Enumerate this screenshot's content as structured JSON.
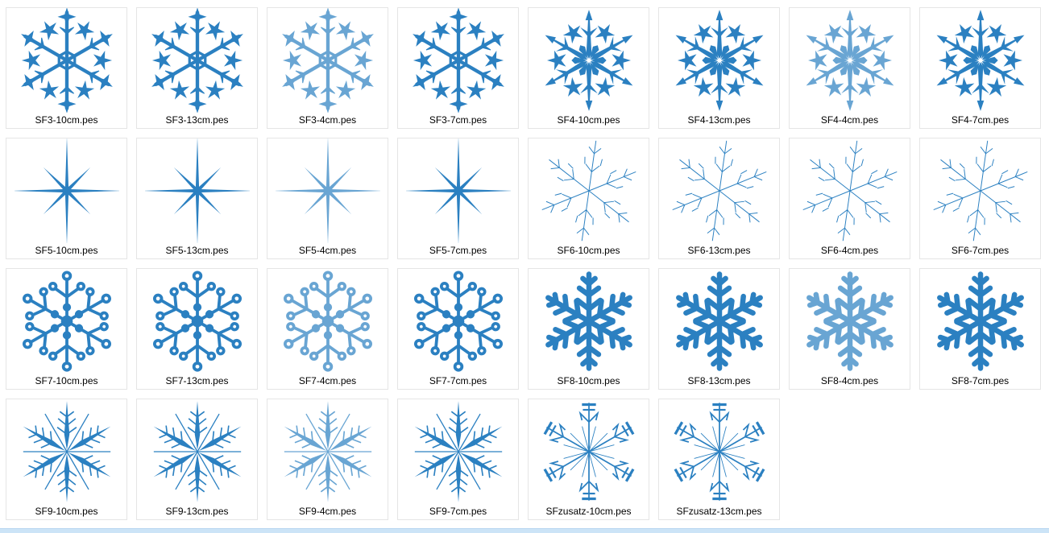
{
  "accent_color": "#2b80c1",
  "files": [
    {
      "name": "SF3-10cm.pes",
      "icon": "sf3"
    },
    {
      "name": "SF3-13cm.pes",
      "icon": "sf3"
    },
    {
      "name": "SF3-4cm.pes",
      "icon": "sf3",
      "light": true
    },
    {
      "name": "SF3-7cm.pes",
      "icon": "sf3"
    },
    {
      "name": "SF4-10cm.pes",
      "icon": "sf4"
    },
    {
      "name": "SF4-13cm.pes",
      "icon": "sf4"
    },
    {
      "name": "SF4-4cm.pes",
      "icon": "sf4",
      "light": true
    },
    {
      "name": "SF4-7cm.pes",
      "icon": "sf4"
    },
    {
      "name": "SF5-10cm.pes",
      "icon": "sf5"
    },
    {
      "name": "SF5-13cm.pes",
      "icon": "sf5"
    },
    {
      "name": "SF5-4cm.pes",
      "icon": "sf5",
      "light": true
    },
    {
      "name": "SF5-7cm.pes",
      "icon": "sf5"
    },
    {
      "name": "SF6-10cm.pes",
      "icon": "sf6"
    },
    {
      "name": "SF6-13cm.pes",
      "icon": "sf6"
    },
    {
      "name": "SF6-4cm.pes",
      "icon": "sf6"
    },
    {
      "name": "SF6-7cm.pes",
      "icon": "sf6"
    },
    {
      "name": "SF7-10cm.pes",
      "icon": "sf7"
    },
    {
      "name": "SF7-13cm.pes",
      "icon": "sf7"
    },
    {
      "name": "SF7-4cm.pes",
      "icon": "sf7",
      "light": true
    },
    {
      "name": "SF7-7cm.pes",
      "icon": "sf7"
    },
    {
      "name": "SF8-10cm.pes",
      "icon": "sf8"
    },
    {
      "name": "SF8-13cm.pes",
      "icon": "sf8"
    },
    {
      "name": "SF8-4cm.pes",
      "icon": "sf8",
      "light": true
    },
    {
      "name": "SF8-7cm.pes",
      "icon": "sf8"
    },
    {
      "name": "SF9-10cm.pes",
      "icon": "sf9"
    },
    {
      "name": "SF9-13cm.pes",
      "icon": "sf9"
    },
    {
      "name": "SF9-4cm.pes",
      "icon": "sf9",
      "light": true
    },
    {
      "name": "SF9-7cm.pes",
      "icon": "sf9"
    },
    {
      "name": "SFzusatz-10cm.pes",
      "icon": "sfzusatz"
    },
    {
      "name": "SFzusatz-13cm.pes",
      "icon": "sfzusatz"
    }
  ]
}
